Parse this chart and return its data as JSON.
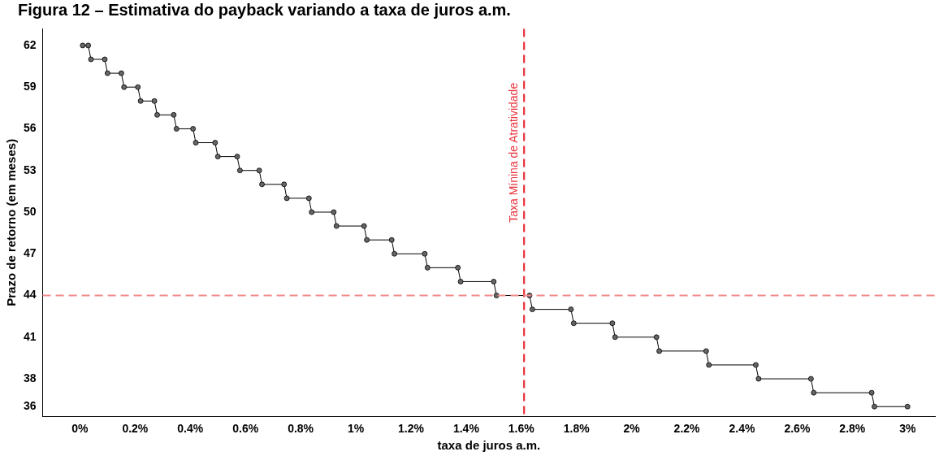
{
  "chart_data": {
    "type": "line",
    "title": "Figura 12 – Estimativa do payback variando a taxa de juros a.m.",
    "xlabel": "taxa de juros a.m.",
    "ylabel": "Prazo de retorno (em meses)",
    "x": [
      0.01,
      0.03,
      0.04,
      0.09,
      0.1,
      0.15,
      0.16,
      0.21,
      0.22,
      0.27,
      0.28,
      0.34,
      0.35,
      0.41,
      0.42,
      0.49,
      0.5,
      0.57,
      0.58,
      0.65,
      0.66,
      0.74,
      0.75,
      0.83,
      0.84,
      0.92,
      0.93,
      1.03,
      1.04,
      1.13,
      1.14,
      1.25,
      1.26,
      1.37,
      1.38,
      1.5,
      1.51,
      1.63,
      1.64,
      1.78,
      1.79,
      1.93,
      1.94,
      2.09,
      2.1,
      2.27,
      2.28,
      2.45,
      2.46,
      2.65,
      2.66,
      2.87,
      2.88,
      3.0
    ],
    "series": [
      {
        "color": "#000000",
        "values": [
          62,
          62,
          61,
          61,
          60,
          60,
          59,
          59,
          58,
          58,
          57,
          57,
          56,
          56,
          55,
          55,
          54,
          54,
          53,
          53,
          52,
          52,
          51,
          51,
          50,
          50,
          49,
          49,
          48,
          48,
          47,
          47,
          46,
          46,
          45,
          45,
          44,
          44,
          43,
          43,
          42,
          42,
          41,
          41,
          40,
          40,
          39,
          39,
          38,
          38,
          37,
          37,
          36,
          36
        ]
      }
    ],
    "marker": "circle",
    "line_style": "solid",
    "grid": false,
    "legend": false,
    "xlim": [
      -0.135,
      3.1
    ],
    "ylim": [
      35.3,
      63.2
    ],
    "xticks": [
      {
        "value": 0,
        "label": "0%"
      },
      {
        "value": 0.2,
        "label": "0.2%"
      },
      {
        "value": 0.4,
        "label": "0.4%"
      },
      {
        "value": 0.6,
        "label": "0.6%"
      },
      {
        "value": 0.8,
        "label": "0.8%"
      },
      {
        "value": 1,
        "label": "1%"
      },
      {
        "value": 1.2,
        "label": "1.2%"
      },
      {
        "value": 1.4,
        "label": "1.4%"
      },
      {
        "value": 1.6,
        "label": "1.6%"
      },
      {
        "value": 1.8,
        "label": "1.8%"
      },
      {
        "value": 2,
        "label": "2%"
      },
      {
        "value": 2.2,
        "label": "2.2%"
      },
      {
        "value": 2.4,
        "label": "2.4%"
      },
      {
        "value": 2.6,
        "label": "2.6%"
      },
      {
        "value": 2.8,
        "label": "2.8%"
      },
      {
        "value": 3,
        "label": "3%"
      }
    ],
    "yticks": [
      36,
      38,
      41,
      44,
      47,
      50,
      53,
      56,
      59,
      62
    ],
    "ref_lines": [
      {
        "axis": "x",
        "value": 1.61,
        "label": "Taxa Mínina de Atratividade",
        "color": "#e8303a",
        "line_style": "dashed"
      },
      {
        "axis": "y",
        "value": 44,
        "label": null,
        "color": "#f08a8a",
        "line_style": "dashed"
      }
    ]
  }
}
